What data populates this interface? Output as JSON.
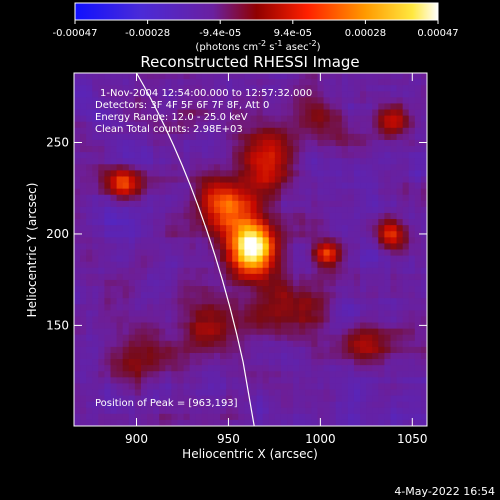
{
  "colorbar": {
    "ticks": [
      "-0.00047",
      "-0.00028",
      "-9.4e-05",
      "9.4e-05",
      "0.00028",
      "0.00047"
    ],
    "range": [
      -0.00047,
      0.00047
    ],
    "colormap": "blue-purple-red-yellow-white",
    "units_html": "(photons cm<tspan dy='-4' font-size='8'>-2</tspan><tspan dy='4'> s</tspan><tspan dy='-4' font-size='8'>-1</tspan><tspan dy='4'> asec</tspan><tspan dy='-4' font-size='8'>-2</tspan><tspan dy='4'>)</tspan>"
  },
  "chart_data": {
    "type": "heatmap",
    "title": "Reconstructed RHESSI Image",
    "xlabel": "Heliocentric X (arcsec)",
    "ylabel": "Heliocentric Y (arcsec)",
    "xlim": [
      866,
      1058
    ],
    "ylim": [
      95,
      288
    ],
    "x_ticks": [
      900,
      950,
      1000,
      1050
    ],
    "y_ticks": [
      150,
      200,
      250
    ],
    "info_lines": [
      "1-Nov-2004 12:54:00.000 to 12:57:32.000",
      "Detectors: 3F 4F 5F 6F 7F 8F, Att 0",
      "Energy Range: 12.0 - 25.0 keV",
      "Clean     Total counts: 2.98E+03"
    ],
    "peak_label": "Position of Peak = [963,193]",
    "peak": [
      963,
      193
    ],
    "limb_curve_x_at_y": [
      [
        900,
        288
      ],
      [
        925,
        245
      ],
      [
        945,
        190
      ],
      [
        958,
        130
      ],
      [
        964,
        95
      ]
    ],
    "bright_sources": [
      {
        "x": 963,
        "y": 193,
        "amp": 1.0,
        "sx": 9,
        "sy": 11
      },
      {
        "x": 947,
        "y": 215,
        "amp": 0.55,
        "sx": 10,
        "sy": 10
      },
      {
        "x": 970,
        "y": 240,
        "amp": 0.45,
        "sx": 10,
        "sy": 12
      },
      {
        "x": 1003,
        "y": 189,
        "amp": 0.55,
        "sx": 5,
        "sy": 5
      },
      {
        "x": 1038,
        "y": 200,
        "amp": 0.45,
        "sx": 5,
        "sy": 6
      },
      {
        "x": 893,
        "y": 228,
        "amp": 0.55,
        "sx": 7,
        "sy": 6
      },
      {
        "x": 980,
        "y": 160,
        "amp": 0.35,
        "sx": 12,
        "sy": 10
      },
      {
        "x": 1025,
        "y": 140,
        "amp": 0.3,
        "sx": 10,
        "sy": 8
      },
      {
        "x": 940,
        "y": 150,
        "amp": 0.3,
        "sx": 10,
        "sy": 10
      },
      {
        "x": 1040,
        "y": 262,
        "amp": 0.3,
        "sx": 6,
        "sy": 6
      },
      {
        "x": 1000,
        "y": 265,
        "amp": 0.25,
        "sx": 8,
        "sy": 8
      },
      {
        "x": 900,
        "y": 130,
        "amp": 0.25,
        "sx": 10,
        "sy": 8
      }
    ]
  },
  "footer": {
    "timestamp": "4-May-2022 16:54"
  }
}
